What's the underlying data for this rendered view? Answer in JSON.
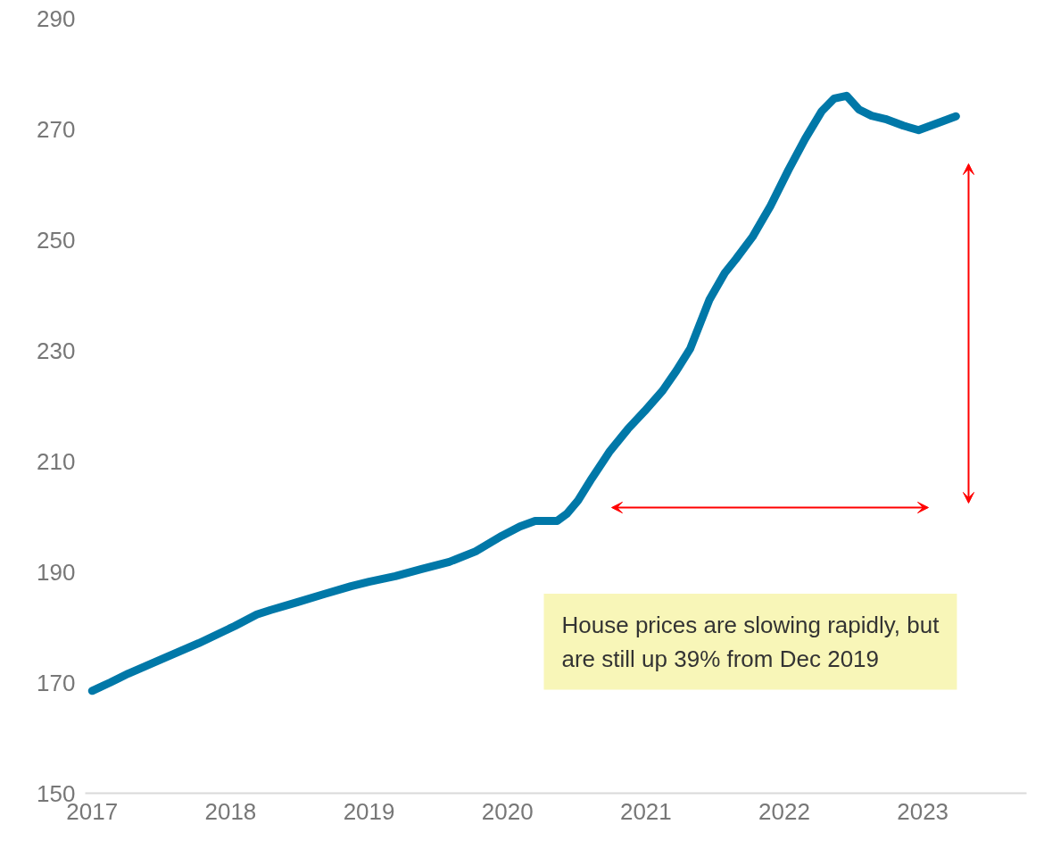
{
  "chart_data": {
    "type": "line",
    "x": [
      2017.0,
      2017.13,
      2017.26,
      2017.52,
      2017.77,
      2018.03,
      2018.19,
      2018.29,
      2018.48,
      2018.68,
      2018.87,
      2019.0,
      2019.19,
      2019.38,
      2019.58,
      2019.77,
      2019.96,
      2020.09,
      2020.2,
      2020.36,
      2020.43,
      2020.51,
      2020.61,
      2020.74,
      2020.87,
      2020.99,
      2021.12,
      2021.22,
      2021.32,
      2021.46,
      2021.57,
      2021.65,
      2021.77,
      2021.9,
      2022.03,
      2022.15,
      2022.27,
      2022.36,
      2022.45,
      2022.54,
      2022.63,
      2022.73,
      2022.86,
      2022.97,
      2023.11,
      2023.24
    ],
    "series": [
      {
        "color": "#0078a8",
        "values": [
          168.5,
          170,
          171.6,
          174.4,
          177.1,
          180.2,
          182.3,
          183.1,
          184.5,
          186,
          187.4,
          188.2,
          189.2,
          190.5,
          191.8,
          193.7,
          196.5,
          198.2,
          199.2,
          199.2,
          200.5,
          202.9,
          206.9,
          211.8,
          215.8,
          219,
          222.7,
          226.3,
          230.3,
          239.2,
          244,
          246.5,
          250.5,
          256.1,
          262.6,
          268.2,
          273.2,
          275.5,
          276,
          273.5,
          272.4,
          271.8,
          270.6,
          269.8,
          271.1,
          272.3
        ]
      }
    ],
    "xlim": [
      2016.95,
      2023.75
    ],
    "xticks": [
      2017,
      2018,
      2019,
      2020,
      2021,
      2022,
      2023
    ],
    "ylim": [
      150,
      290
    ],
    "yticks": [
      150,
      170,
      190,
      210,
      230,
      250,
      270,
      290
    ],
    "grid": false,
    "marker": "none",
    "line_style": "solid",
    "annotations": [
      "House prices are slowing rapidly, but are still up 39% from Dec 2019"
    ]
  }
}
